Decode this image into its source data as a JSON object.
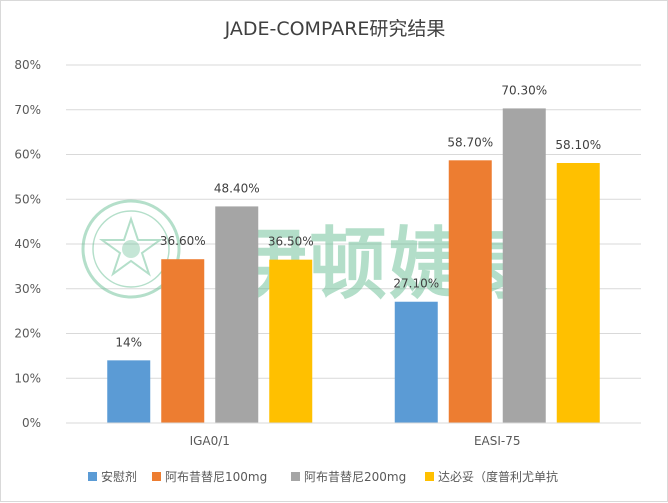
{
  "chart_data": {
    "type": "bar",
    "title": "JADE-COMPARE研究结果",
    "categories": [
      "IGA0/1",
      "EASI-75"
    ],
    "series": [
      {
        "name": "安慰剂",
        "values": [
          14,
          27.1
        ],
        "labels": [
          "14%",
          "27.10%"
        ],
        "color": "#5b9bd5"
      },
      {
        "name": "阿布昔替尼100mg",
        "values": [
          36.6,
          58.7
        ],
        "labels": [
          "36.60%",
          "58.70%"
        ],
        "color": "#ed7d31"
      },
      {
        "name": "阿布昔替尼200mg",
        "values": [
          48.4,
          70.3
        ],
        "labels": [
          "48.40%",
          "70.30%"
        ],
        "color": "#a5a5a5"
      },
      {
        "name": "达必妥（度普利尤单抗",
        "values": [
          36.5,
          58.1
        ],
        "labels": [
          "36.50%",
          "58.10%"
        ],
        "color": "#ffc000"
      }
    ],
    "yticks": [
      "0%",
      "10%",
      "20%",
      "30%",
      "40%",
      "50%",
      "60%",
      "70%",
      "80%"
    ],
    "ylim": [
      0,
      80
    ],
    "grid": true,
    "legend": "bottom"
  },
  "watermark": {
    "text": "伊顿婕康",
    "color": "#59b88a"
  }
}
